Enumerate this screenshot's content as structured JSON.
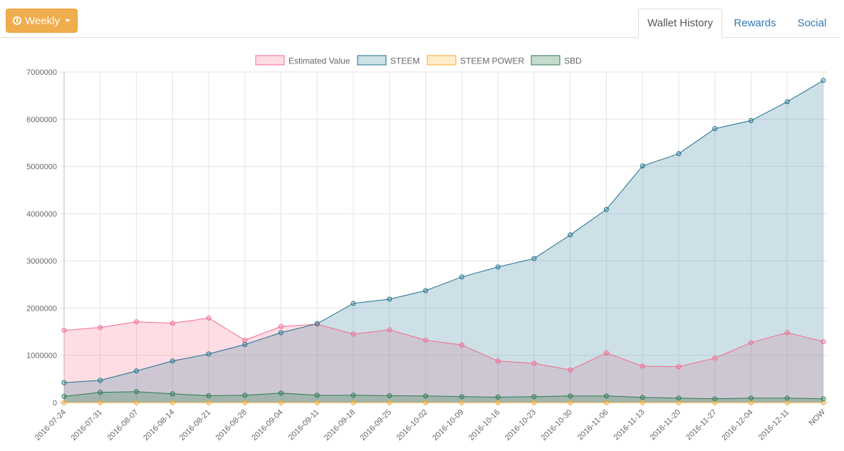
{
  "toolbar": {
    "period_label": "Weekly",
    "period_icon": "clock-icon"
  },
  "tabs": [
    {
      "label": "Wallet History",
      "active": true
    },
    {
      "label": "Rewards",
      "active": false
    },
    {
      "label": "Social",
      "active": false
    }
  ],
  "colors": {
    "link": "#337ab7",
    "button": "#f0ad4e"
  },
  "chart_data": {
    "type": "area",
    "legend_position": "top",
    "grid": true,
    "ylim": [
      0,
      7000000
    ],
    "yticks": [
      "0",
      "1000000",
      "2000000",
      "3000000",
      "4000000",
      "5000000",
      "6000000",
      "7000000"
    ],
    "categories": [
      "2016-07-24",
      "2016-07-31",
      "2016-08-07",
      "2016-08-14",
      "2016-08-21",
      "2016-08-28",
      "2016-09-04",
      "2016-09-11",
      "2016-09-18",
      "2016-09-25",
      "2016-10-02",
      "2016-10-09",
      "2016-10-16",
      "2016-10-23",
      "2016-10-30",
      "2016-11-06",
      "2016-11-13",
      "2016-11-20",
      "2016-11-27",
      "2016-12-04",
      "2016-12-11",
      "NOW"
    ],
    "series": [
      {
        "name": "Estimated Value",
        "color": "#f06b8f",
        "fill": "rgba(255,99,132,0.22)",
        "values": [
          1530000,
          1590000,
          1710000,
          1680000,
          1790000,
          1320000,
          1610000,
          1660000,
          1450000,
          1540000,
          1320000,
          1220000,
          880000,
          830000,
          690000,
          1050000,
          770000,
          760000,
          940000,
          1270000,
          1480000,
          1290000
        ]
      },
      {
        "name": "STEEM",
        "color": "#1d6f8c",
        "fill": "rgba(75,145,170,0.28)",
        "values": [
          420000,
          470000,
          670000,
          880000,
          1030000,
          1230000,
          1480000,
          1670000,
          2100000,
          2190000,
          2370000,
          2660000,
          2870000,
          3050000,
          3550000,
          4090000,
          5010000,
          5270000,
          5800000,
          5970000,
          6370000,
          6820000
        ]
      },
      {
        "name": "STEEM POWER",
        "color": "#f0a830",
        "fill": "rgba(255,200,100,0.35)",
        "values": [
          0,
          0,
          0,
          0,
          0,
          0,
          0,
          0,
          0,
          0,
          0,
          0,
          0,
          0,
          0,
          0,
          0,
          0,
          0,
          0,
          0,
          0
        ]
      },
      {
        "name": "SBD",
        "color": "#2e7a52",
        "fill": "rgba(60,140,90,0.30)",
        "values": [
          130000,
          215000,
          230000,
          185000,
          145000,
          155000,
          200000,
          155000,
          155000,
          145000,
          140000,
          125000,
          115000,
          125000,
          140000,
          140000,
          110000,
          95000,
          80000,
          95000,
          95000,
          80000
        ]
      }
    ]
  }
}
